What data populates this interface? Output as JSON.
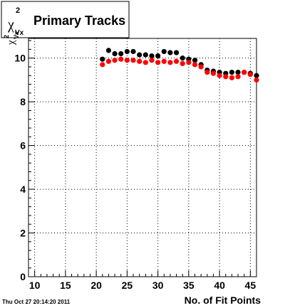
{
  "timestamp": "Thu Oct 27 20:14:20 2011",
  "title": {
    "symbol": "χ",
    "sup": "2",
    "sub": "Vx",
    "text": "Primary Tracks"
  },
  "ylabel": {
    "symbol": "χ",
    "sup": "2",
    "sub": "Vx"
  },
  "chart_data": {
    "type": "scatter",
    "xlabel": "No. of Fit Points",
    "xlim": [
      9,
      46
    ],
    "ylim": [
      0,
      10.9
    ],
    "x_ticks": [
      10,
      15,
      20,
      25,
      30,
      35,
      40,
      45
    ],
    "y_ticks": [
      0,
      2,
      4,
      6,
      8,
      10
    ],
    "grid": true,
    "series": [
      {
        "color": "#000000",
        "x": [
          21,
          22,
          23,
          24,
          25,
          26,
          27,
          28,
          29,
          30,
          31,
          32,
          33,
          34,
          35,
          36,
          37,
          38,
          39,
          40,
          41,
          42,
          43,
          44,
          45,
          46
        ],
        "y": [
          9.95,
          10.35,
          10.2,
          10.2,
          10.3,
          10.3,
          10.15,
          10.15,
          10.1,
          10.1,
          10.3,
          10.25,
          10.25,
          10.0,
          9.95,
          9.9,
          9.7,
          9.45,
          9.4,
          9.35,
          9.3,
          9.35,
          9.35,
          9.35,
          9.3,
          9.2
        ]
      },
      {
        "color": "#ff0000",
        "x": [
          21,
          22,
          23,
          24,
          25,
          26,
          27,
          28,
          29,
          30,
          31,
          32,
          33,
          34,
          35,
          36,
          37,
          38,
          39,
          40,
          41,
          42,
          43,
          44,
          45,
          46
        ],
        "y": [
          9.7,
          9.85,
          9.9,
          9.95,
          9.9,
          9.9,
          9.85,
          9.8,
          9.9,
          9.8,
          9.85,
          9.8,
          9.85,
          9.75,
          9.8,
          9.7,
          9.6,
          9.35,
          9.3,
          9.2,
          9.15,
          9.1,
          9.15,
          9.35,
          9.25,
          9.0
        ]
      }
    ]
  }
}
